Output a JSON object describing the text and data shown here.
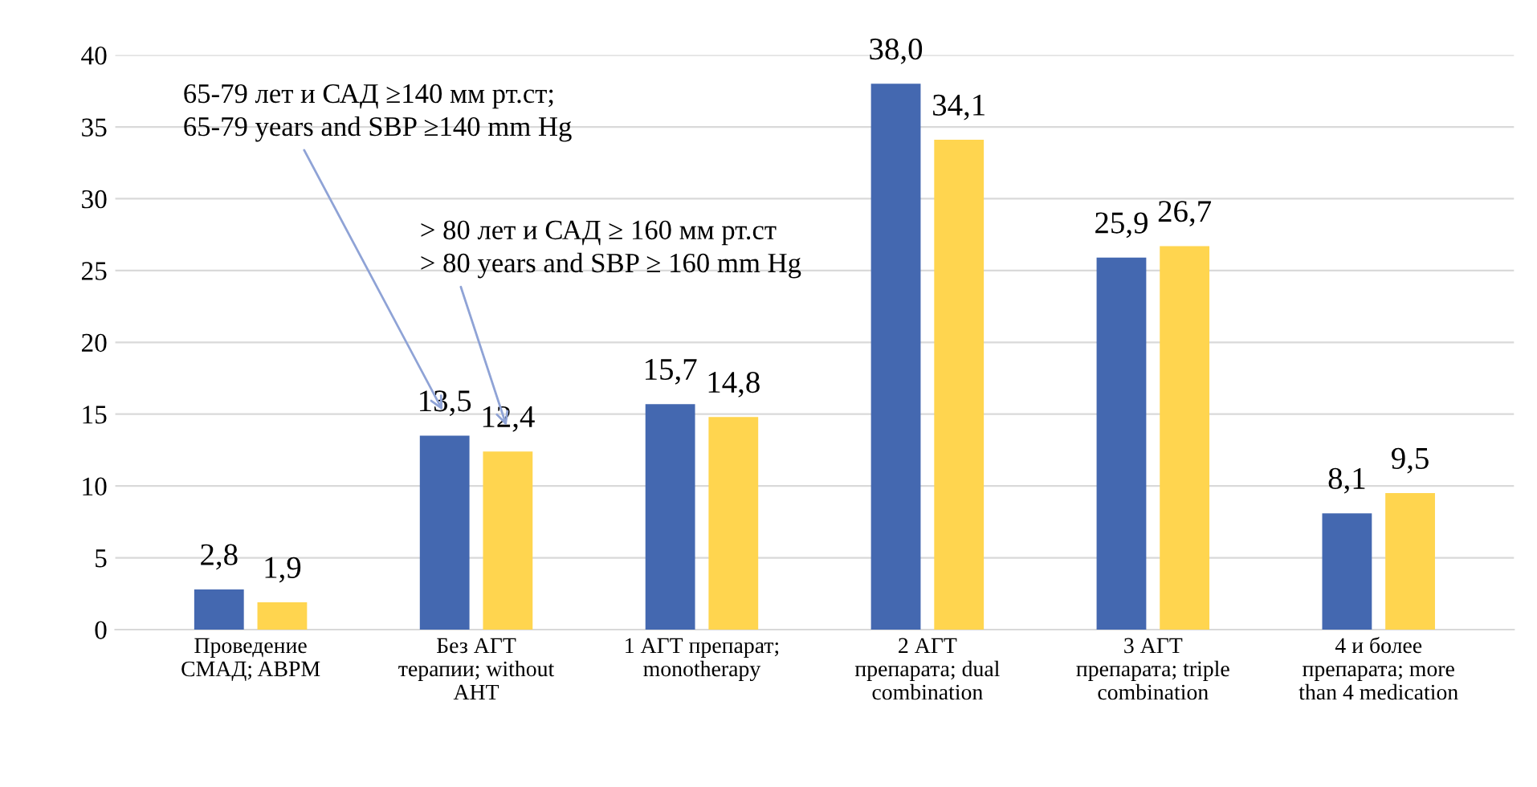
{
  "chart_data": {
    "type": "bar",
    "categories": [
      "Проведение\nСМАД; ABPM",
      "Без АГТ\nтерапии; without\nAHT",
      "1 АГТ препарат;\nmonotherapy",
      "2 АГТ\nпрепарата; dual\ncombination",
      "3 АГТ\nпрепарата; triple\ncombination",
      "4 и более\nпрепарата; more\nthan 4 medication"
    ],
    "series": [
      {
        "color": "#4468b0",
        "values": [
          2.8,
          13.5,
          15.7,
          38.0,
          25.9,
          8.1
        ],
        "value_labels": [
          "2,8",
          "13,5",
          "15,7",
          "38,0",
          "25,9",
          "8,1"
        ]
      },
      {
        "color": "#ffd54f",
        "values": [
          1.9,
          12.4,
          14.8,
          34.1,
          26.7,
          9.5
        ],
        "value_labels": [
          "1,9",
          "12,4",
          "14,8",
          "34,1",
          "26,7",
          "9,5"
        ]
      }
    ],
    "annotations": [
      "65-79 лет и САД ≥140 мм рт.ст;\n65-79 years and SBP ≥140 mm Hg",
      "> 80 лет и САД ≥ 160 мм рт.ст\n> 80 years and SBP ≥ 160 mm Hg"
    ],
    "ylim": [
      0,
      40
    ],
    "yticks": [
      0,
      5,
      10,
      15,
      20,
      25,
      30,
      35,
      40
    ],
    "grid": "y",
    "legend": false
  }
}
